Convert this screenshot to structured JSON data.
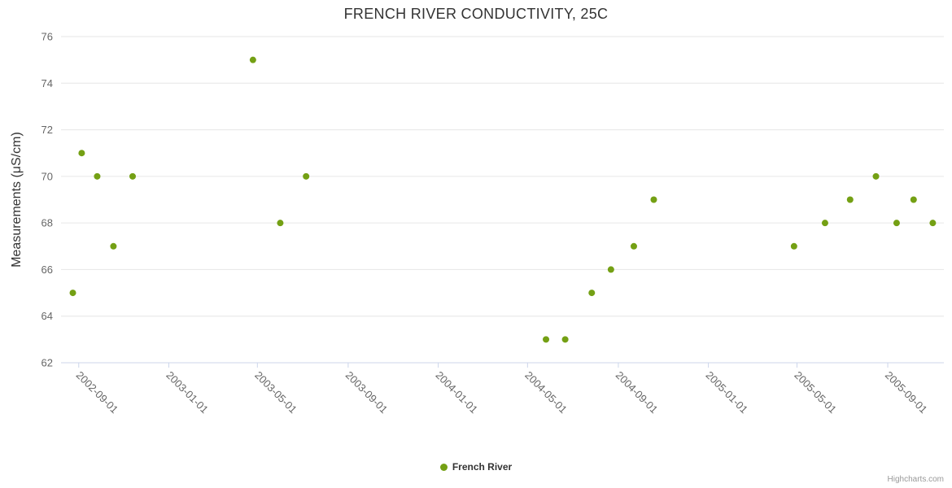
{
  "title": "FRENCH RIVER CONDUCTIVITY, 25C",
  "legend": {
    "label": "French River",
    "marker_color": "#74a014"
  },
  "credits": "Highcharts.com",
  "chart_data": {
    "type": "scatter",
    "title": "FRENCH RIVER CONDUCTIVITY, 25C",
    "xlabel": "",
    "ylabel": "Measurements (μS/cm)",
    "ylim": [
      62,
      76
    ],
    "y_tick_interval": 2,
    "y_ticks": [
      62,
      64,
      66,
      68,
      70,
      72,
      74,
      76
    ],
    "x_range": [
      "2002-08-08",
      "2005-11-16"
    ],
    "x_ticks": [
      "2002-09-01",
      "2003-01-01",
      "2003-05-01",
      "2003-09-01",
      "2004-01-01",
      "2004-05-01",
      "2004-09-01",
      "2005-01-01",
      "2005-05-01",
      "2005-09-01"
    ],
    "grid": true,
    "legend_position": "bottom",
    "colors": {
      "marker": "#74a014",
      "grid": "#e6e6e6",
      "axis": "#ccd6eb",
      "title_text": "#333333",
      "axis_title_text": "#333333",
      "tick_text": "#666666",
      "credits_text": "#999999"
    },
    "series": [
      {
        "name": "French River",
        "color": "#74a014",
        "points": [
          [
            "2002-08-24",
            65
          ],
          [
            "2002-09-05",
            71
          ],
          [
            "2002-09-26",
            70
          ],
          [
            "2002-10-18",
            67
          ],
          [
            "2002-11-13",
            70
          ],
          [
            "2003-04-25",
            75
          ],
          [
            "2003-06-01",
            68
          ],
          [
            "2003-07-06",
            70
          ],
          [
            "2004-05-26",
            63
          ],
          [
            "2004-06-21",
            63
          ],
          [
            "2004-07-27",
            65
          ],
          [
            "2004-08-22",
            66
          ],
          [
            "2004-09-22",
            67
          ],
          [
            "2004-10-19",
            69
          ],
          [
            "2005-04-27",
            67
          ],
          [
            "2005-06-08",
            68
          ],
          [
            "2005-07-12",
            69
          ],
          [
            "2005-08-16",
            70
          ],
          [
            "2005-09-13",
            68
          ],
          [
            "2005-10-06",
            69
          ],
          [
            "2005-11-01",
            68
          ]
        ]
      }
    ]
  }
}
